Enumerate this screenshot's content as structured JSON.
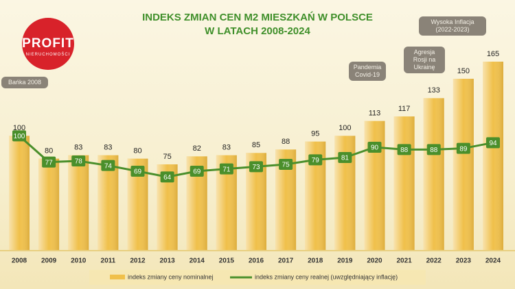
{
  "logo": {
    "name": "PROFIT",
    "tagline": "NIERUCHOMOŚCI"
  },
  "chart_data": {
    "type": "bar-line",
    "title": "INDEKS ZMIAN CEN M2 MIESZKAŃ W POLSCE",
    "subtitle": "W LATACH 2008-2024",
    "categories": [
      "2008",
      "2009",
      "2010",
      "2011",
      "2012",
      "2013",
      "2014",
      "2015",
      "2016",
      "2017",
      "2018",
      "2019",
      "2020",
      "2021",
      "2022",
      "2023",
      "2024"
    ],
    "series": [
      {
        "name": "indeks zmiany ceny nominalnej",
        "type": "bar",
        "color": "#f0c04a",
        "values": [
          100,
          80,
          83,
          83,
          80,
          75,
          82,
          83,
          85,
          88,
          95,
          100,
          113,
          117,
          133,
          150,
          165
        ]
      },
      {
        "name": "indeks zmiany ceny realnej (uwzględniający inflację)",
        "type": "line",
        "color": "#4a8f2b",
        "values": [
          100,
          77,
          78,
          74,
          69,
          64,
          69,
          71,
          73,
          75,
          79,
          81,
          90,
          88,
          88,
          89,
          94
        ]
      }
    ],
    "ylim": [
      0,
      180
    ],
    "annotations": [
      "Bańka 2008",
      "Pandemia Covid-19",
      "Agresja Rosji na Ukrainę",
      "Wysoka Inflacja (2022-2023)"
    ]
  }
}
